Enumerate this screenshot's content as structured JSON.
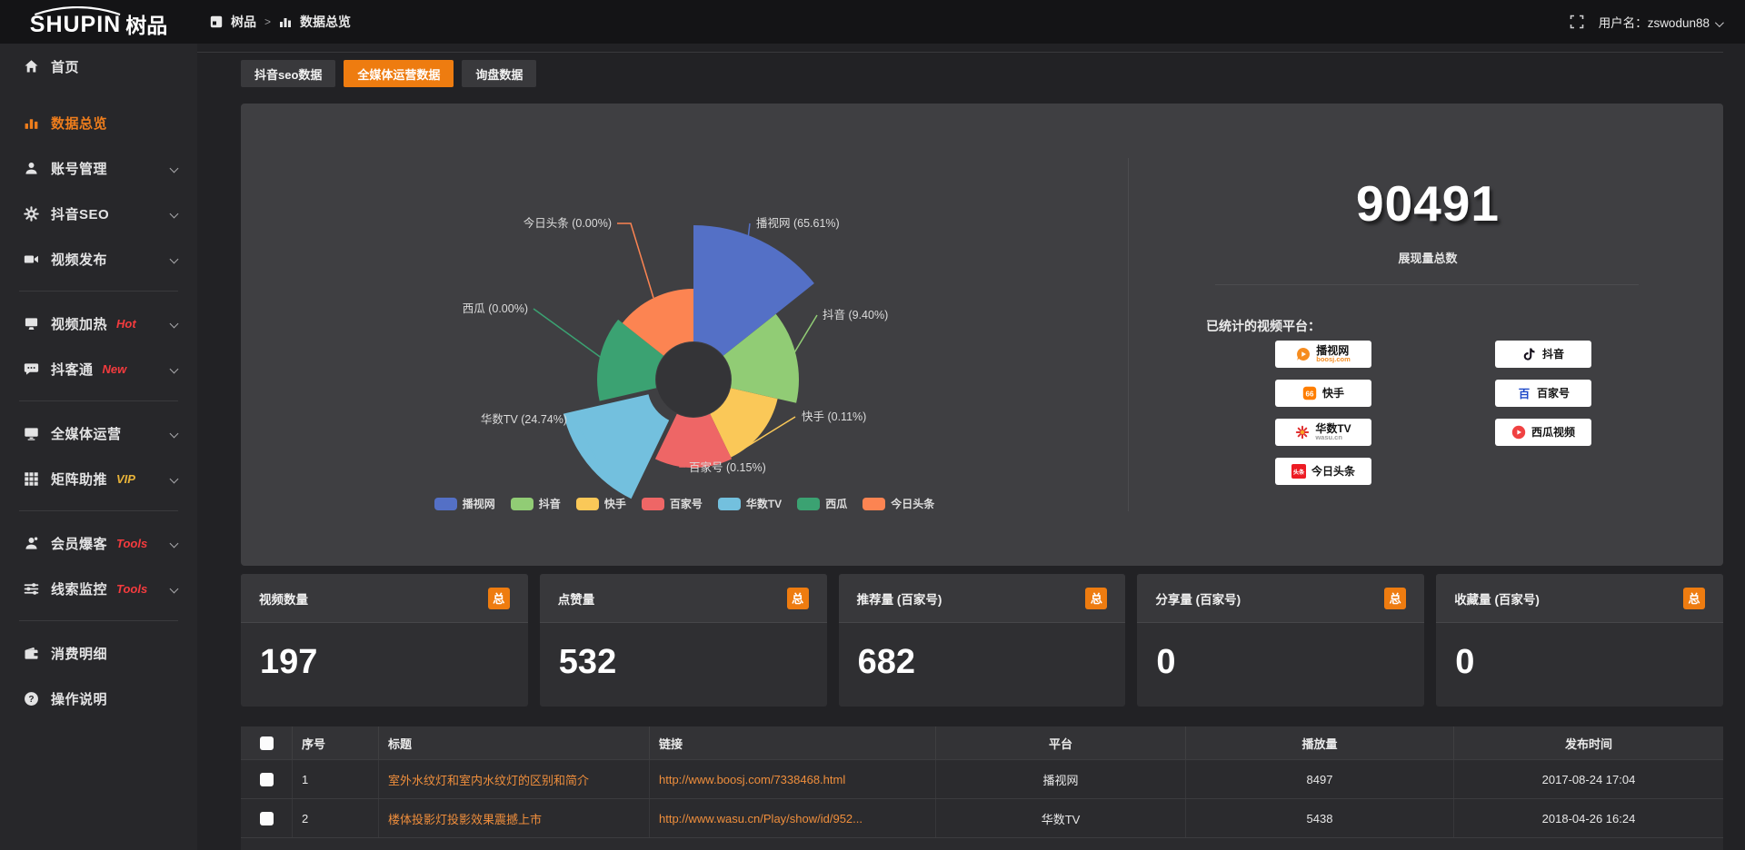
{
  "topbar": {
    "logo_en": "SHUPIN",
    "logo_cn": "树品",
    "breadcrumb_root": "树品",
    "breadcrumb_sep": ">",
    "breadcrumb_current": "数据总览",
    "user_prefix": "用户名：",
    "username": "zswodun88"
  },
  "sidebar": {
    "items": [
      {
        "label": "首页",
        "icon": "home",
        "chevron": false,
        "badge": "",
        "active": false,
        "divider_after": false,
        "first": true
      },
      {
        "label": "数据总览",
        "icon": "bar-chart",
        "chevron": false,
        "badge": "",
        "active": true,
        "divider_after": false
      },
      {
        "label": "账号管理",
        "icon": "user",
        "chevron": true,
        "badge": "",
        "active": false,
        "divider_after": false
      },
      {
        "label": "抖音SEO",
        "icon": "gear",
        "chevron": true,
        "badge": "",
        "active": false,
        "divider_after": false
      },
      {
        "label": "视频发布",
        "icon": "video",
        "chevron": true,
        "badge": "",
        "active": false,
        "divider_after": true
      },
      {
        "label": "视频加热",
        "icon": "screen-play",
        "chevron": true,
        "badge": "Hot",
        "badge_color": "#f43b3e",
        "active": false,
        "divider_after": false
      },
      {
        "label": "抖客通",
        "icon": "chat",
        "chevron": true,
        "badge": "New",
        "badge_color": "#f43b3e",
        "active": false,
        "divider_after": true
      },
      {
        "label": "全媒体运营",
        "icon": "monitor",
        "chevron": true,
        "badge": "",
        "active": false,
        "divider_after": false
      },
      {
        "label": "矩阵助推",
        "icon": "grid",
        "chevron": true,
        "badge": "VIP",
        "badge_color": "#e8b339",
        "active": false,
        "divider_after": true
      },
      {
        "label": "会员爆客",
        "icon": "member",
        "chevron": true,
        "badge": "Tools",
        "badge_color": "#f43b3e",
        "active": false,
        "divider_after": false
      },
      {
        "label": "线索监控",
        "icon": "sliders",
        "chevron": true,
        "badge": "Tools",
        "badge_color": "#f43b3e",
        "active": false,
        "divider_after": true
      },
      {
        "label": "消费明细",
        "icon": "wallet",
        "chevron": false,
        "badge": "",
        "active": false,
        "divider_after": false
      },
      {
        "label": "操作说明",
        "icon": "help",
        "chevron": false,
        "badge": "",
        "active": false,
        "divider_after": false
      }
    ]
  },
  "tabs": [
    {
      "label": "抖音seo数据",
      "active": false
    },
    {
      "label": "全媒体运营数据",
      "active": true
    },
    {
      "label": "询盘数据",
      "active": false
    }
  ],
  "chart_data": {
    "type": "pie",
    "variant": "nightingale-rose",
    "legend_position": "bottom",
    "series": [
      {
        "name": "播视网",
        "pct": 65.61,
        "color": "#5470c6"
      },
      {
        "name": "抖音",
        "pct": 9.4,
        "color": "#91cc75"
      },
      {
        "name": "快手",
        "pct": 0.11,
        "color": "#fac858"
      },
      {
        "name": "百家号",
        "pct": 0.15,
        "color": "#ee6666"
      },
      {
        "name": "华数TV",
        "pct": 24.74,
        "color": "#73c0de",
        "selected": true
      },
      {
        "name": "西瓜",
        "pct": 0.0,
        "color": "#3ba272"
      },
      {
        "name": "今日头条",
        "pct": 0.0,
        "color": "#fc8452"
      }
    ],
    "labels": [
      "播视网 (65.61%)",
      "抖音 (9.40%)",
      "快手 (0.11%)",
      "百家号 (0.15%)",
      "华数TV (24.74%)",
      "西瓜 (0.00%)",
      "今日头条 (0.00%)"
    ],
    "legend": [
      "播视网",
      "抖音",
      "快手",
      "百家号",
      "华数TV",
      "西瓜",
      "今日头条"
    ]
  },
  "summary": {
    "total": "90491",
    "total_label": "展现量总数",
    "platforms_title": "已统计的视频平台：",
    "badges_left": [
      {
        "name": "播视网",
        "sub": "boosj.com",
        "icon": "boosj"
      },
      {
        "name": "快手",
        "sub": "",
        "icon": "kuaishou"
      },
      {
        "name": "华数TV",
        "sub": "wasu.cn",
        "icon": "wasu"
      },
      {
        "name": "今日头条",
        "sub": "",
        "icon": "toutiao"
      }
    ],
    "badges_right": [
      {
        "name": "抖音",
        "sub": "",
        "icon": "douyin"
      },
      {
        "name": "百家号",
        "sub": "",
        "icon": "baijia"
      },
      {
        "name": "西瓜视频",
        "sub": "",
        "icon": "xigua"
      }
    ]
  },
  "stat_cards": [
    {
      "title": "视频数量",
      "badge": "总",
      "value": "197"
    },
    {
      "title": "点赞量",
      "badge": "总",
      "value": "532"
    },
    {
      "title": "推荐量 (百家号)",
      "badge": "总",
      "value": "682"
    },
    {
      "title": "分享量 (百家号)",
      "badge": "总",
      "value": "0"
    },
    {
      "title": "收藏量 (百家号)",
      "badge": "总",
      "value": "0"
    }
  ],
  "table": {
    "headers": [
      "序号",
      "标题",
      "链接",
      "平台",
      "播放量",
      "发布时间"
    ],
    "rows": [
      {
        "no": "1",
        "title": "室外水纹灯和室内水纹灯的区别和简介",
        "link": "http://www.boosj.com/7338468.html",
        "platform": "播视网",
        "plays": "8497",
        "time": "2017-08-24 17:04"
      },
      {
        "no": "2",
        "title": "楼体投影灯投影效果震撼上市",
        "link": "http://www.wasu.cn/Play/show/id/952...",
        "platform": "华数TV",
        "plays": "5438",
        "time": "2018-04-26 16:24"
      }
    ]
  }
}
